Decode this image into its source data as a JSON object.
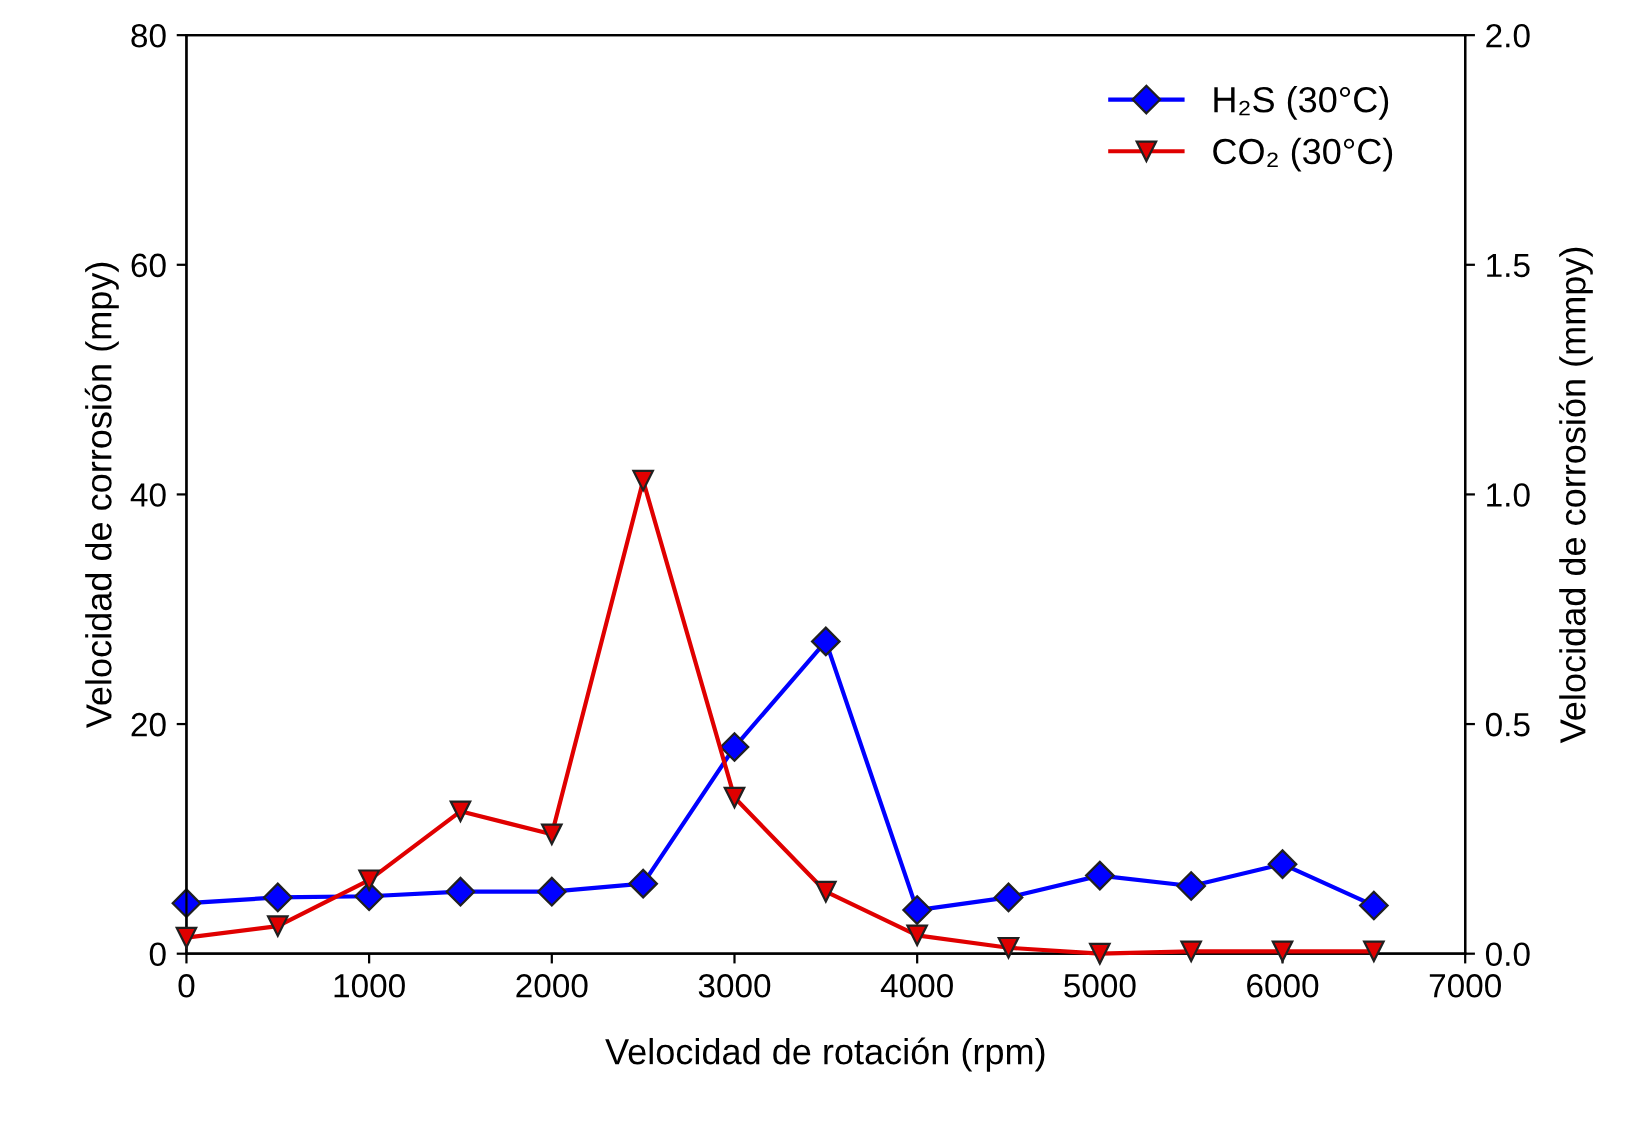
{
  "chart_data": {
    "type": "line",
    "xlabel": "Velocidad de rotación (rpm)",
    "ylabel": "Velocidad de corrosión (mpy)",
    "y2label": "Velocidad de corrosión (mmpy)",
    "x": [
      0,
      500,
      1000,
      1500,
      2000,
      2500,
      3000,
      3500,
      4000,
      4500,
      5000,
      5500,
      6000,
      6500
    ],
    "xlim": [
      0,
      7000
    ],
    "xticks": [
      0,
      1000,
      2000,
      3000,
      4000,
      5000,
      6000,
      7000
    ],
    "ylim": [
      0,
      80
    ],
    "yticks": [
      0,
      20,
      40,
      60,
      80
    ],
    "y2lim": [
      0,
      2.0
    ],
    "y2ticks": [
      {
        "value": 0,
        "label": "0.0"
      },
      {
        "value": 0.5,
        "label": "0.5"
      },
      {
        "value": 1.0,
        "label": "1.0"
      },
      {
        "value": 1.5,
        "label": "1.5"
      },
      {
        "value": 2.0,
        "label": "2.0"
      }
    ],
    "series": [
      {
        "name": "H₂S (30°C)",
        "color": "#0000ff",
        "marker": "diamond",
        "values": [
          4.4,
          4.9,
          5.0,
          5.4,
          5.4,
          6.1,
          18.0,
          27.2,
          3.8,
          4.9,
          6.8,
          5.9,
          7.8,
          4.2
        ]
      },
      {
        "name": "CO₂ (30°C)",
        "color": "#e00000",
        "marker": "triangle_down",
        "axis": "y2",
        "values": [
          0.035,
          0.06,
          0.16,
          0.31,
          0.26,
          1.03,
          0.34,
          0.135,
          0.04,
          0.013,
          0.0,
          0.005,
          0.005,
          0.005
        ]
      }
    ],
    "grid": false,
    "legend": "top right",
    "line_style": "solid"
  }
}
